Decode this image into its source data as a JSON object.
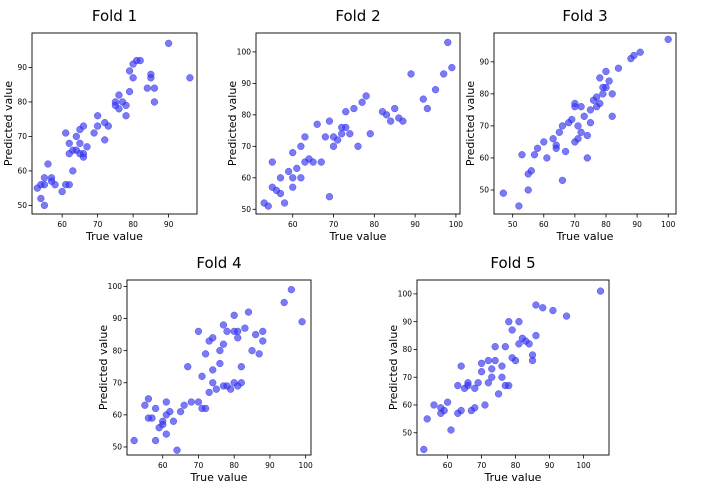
{
  "marker_color": "#3333ee",
  "chart_data": [
    {
      "type": "scatter",
      "title": "Fold 1",
      "xlabel": "True value",
      "ylabel": "Predicted value",
      "xlim": [
        51.5,
        98
      ],
      "ylim": [
        47.5,
        100
      ],
      "xticks": [
        60,
        70,
        80,
        90
      ],
      "yticks": [
        50,
        60,
        70,
        80,
        90
      ],
      "x": [
        53,
        54,
        54,
        55,
        55,
        55,
        56,
        57,
        57,
        58,
        60,
        61,
        61,
        62,
        62,
        62,
        63,
        63,
        64,
        64,
        65,
        65,
        65,
        66,
        66,
        66,
        67,
        69,
        70,
        70,
        72,
        72,
        73,
        75,
        75,
        76,
        76,
        77,
        78,
        78,
        79,
        79,
        80,
        80,
        81,
        82,
        84,
        85,
        85,
        86,
        86,
        90,
        96
      ],
      "y": [
        55,
        56,
        52,
        50,
        56,
        58,
        62,
        57,
        58,
        56,
        54,
        56,
        71,
        56,
        65,
        68,
        60,
        66,
        66,
        70,
        65,
        68,
        72,
        64,
        65,
        73,
        67,
        71,
        73,
        76,
        69,
        74,
        73,
        79,
        80,
        82,
        78,
        80,
        79,
        76,
        89,
        83,
        87,
        91,
        92,
        92,
        84,
        87,
        88,
        80,
        84,
        97,
        87
      ]
    },
    {
      "type": "scatter",
      "title": "Fold 2",
      "xlabel": "True value",
      "ylabel": "Predicted value",
      "xlim": [
        51,
        101
      ],
      "ylim": [
        48.5,
        106
      ],
      "xticks": [
        60,
        70,
        80,
        90,
        100
      ],
      "yticks": [
        50,
        60,
        70,
        80,
        90,
        100
      ],
      "x": [
        53,
        54,
        55,
        55,
        56,
        57,
        57,
        58,
        59,
        60,
        60,
        60,
        61,
        62,
        62,
        63,
        63,
        64,
        65,
        66,
        67,
        68,
        69,
        69,
        70,
        70,
        71,
        72,
        72,
        73,
        73,
        74,
        75,
        76,
        77,
        78,
        79,
        82,
        83,
        84,
        85,
        86,
        87,
        89,
        92,
        93,
        95,
        97,
        98,
        99
      ],
      "y": [
        52,
        51,
        57,
        65,
        56,
        55,
        60,
        52,
        62,
        57,
        60,
        68,
        63,
        60,
        70,
        65,
        73,
        66,
        65,
        77,
        65,
        73,
        54,
        78,
        70,
        73,
        72,
        76,
        74,
        81,
        76,
        74,
        82,
        70,
        84,
        86,
        74,
        81,
        80,
        78,
        82,
        79,
        78,
        93,
        85,
        82,
        88,
        93,
        103,
        95
      ]
    },
    {
      "type": "scatter",
      "title": "Fold 3",
      "xlabel": "True value",
      "ylabel": "Predicted value",
      "xlim": [
        44,
        102.5
      ],
      "ylim": [
        42.5,
        99
      ],
      "xticks": [
        50,
        60,
        70,
        80,
        90,
        100
      ],
      "yticks": [
        50,
        60,
        70,
        80,
        90
      ],
      "x": [
        47,
        52,
        53,
        55,
        55,
        56,
        57,
        58,
        60,
        61,
        63,
        64,
        64,
        65,
        66,
        66,
        67,
        68,
        69,
        70,
        70,
        70,
        71,
        71,
        72,
        72,
        73,
        74,
        74,
        75,
        75,
        76,
        77,
        77,
        78,
        78,
        79,
        79,
        80,
        80,
        81,
        82,
        82,
        84,
        88,
        89,
        91,
        100
      ],
      "y": [
        49,
        45,
        61,
        50,
        55,
        56,
        61,
        63,
        65,
        60,
        66,
        63,
        64,
        68,
        70,
        53,
        62,
        71,
        72,
        65,
        76,
        77,
        70,
        66,
        76,
        68,
        73,
        60,
        67,
        75,
        71,
        78,
        76,
        79,
        77,
        85,
        82,
        80,
        87,
        82,
        84,
        80,
        73,
        88,
        91,
        92,
        93,
        97
      ]
    },
    {
      "type": "scatter",
      "title": "Fold 4",
      "xlabel": "True value",
      "ylabel": "Predicted value",
      "xlim": [
        50,
        101.5
      ],
      "ylim": [
        47.5,
        102
      ],
      "xticks": [
        60,
        70,
        80,
        90,
        100
      ],
      "yticks": [
        50,
        60,
        70,
        80,
        90,
        100
      ],
      "x": [
        52,
        55,
        56,
        56,
        57,
        58,
        58,
        59,
        60,
        60,
        61,
        61,
        61,
        62,
        63,
        64,
        65,
        66,
        67,
        68,
        70,
        70,
        71,
        71,
        72,
        72,
        73,
        73,
        74,
        74,
        74,
        75,
        76,
        76,
        77,
        77,
        77,
        78,
        78,
        79,
        80,
        80,
        80,
        81,
        81,
        81,
        82,
        82,
        83,
        84,
        85,
        86,
        87,
        88,
        88,
        94,
        96,
        99
      ],
      "y": [
        52,
        63,
        59,
        65,
        59,
        62,
        52,
        56,
        57,
        58,
        54,
        60,
        64,
        61,
        58,
        49,
        61,
        63,
        75,
        64,
        64,
        86,
        62,
        72,
        62,
        79,
        83,
        67,
        74,
        70,
        84,
        68,
        76,
        80,
        69,
        82,
        88,
        69,
        86,
        68,
        86,
        70,
        91,
        69,
        84,
        86,
        70,
        75,
        87,
        92,
        80,
        85,
        79,
        83,
        86,
        95,
        99,
        89
      ]
    },
    {
      "type": "scatter",
      "title": "Fold 5",
      "xlabel": "True value",
      "ylabel": "Predicted value",
      "xlim": [
        51,
        107.5
      ],
      "ylim": [
        42,
        105
      ],
      "xticks": [
        60,
        70,
        80,
        90,
        100
      ],
      "yticks": [
        50,
        60,
        70,
        80,
        90,
        100
      ],
      "x": [
        53,
        54,
        56,
        58,
        58,
        59,
        60,
        61,
        63,
        63,
        64,
        64,
        65,
        66,
        66,
        67,
        68,
        68,
        69,
        70,
        70,
        71,
        72,
        72,
        73,
        73,
        74,
        74,
        75,
        76,
        76,
        77,
        77,
        78,
        78,
        79,
        79,
        80,
        81,
        81,
        82,
        83,
        84,
        85,
        85,
        86,
        86,
        88,
        91,
        95,
        105
      ],
      "y": [
        44,
        55,
        60,
        57,
        59,
        58,
        61,
        51,
        57,
        67,
        58,
        74,
        66,
        67,
        68,
        58,
        59,
        66,
        68,
        75,
        72,
        60,
        68,
        76,
        70,
        73,
        76,
        81,
        64,
        70,
        74,
        67,
        81,
        67,
        90,
        87,
        77,
        76,
        82,
        90,
        84,
        83,
        82,
        76,
        78,
        85,
        96,
        95,
        94,
        92,
        101
      ]
    }
  ]
}
